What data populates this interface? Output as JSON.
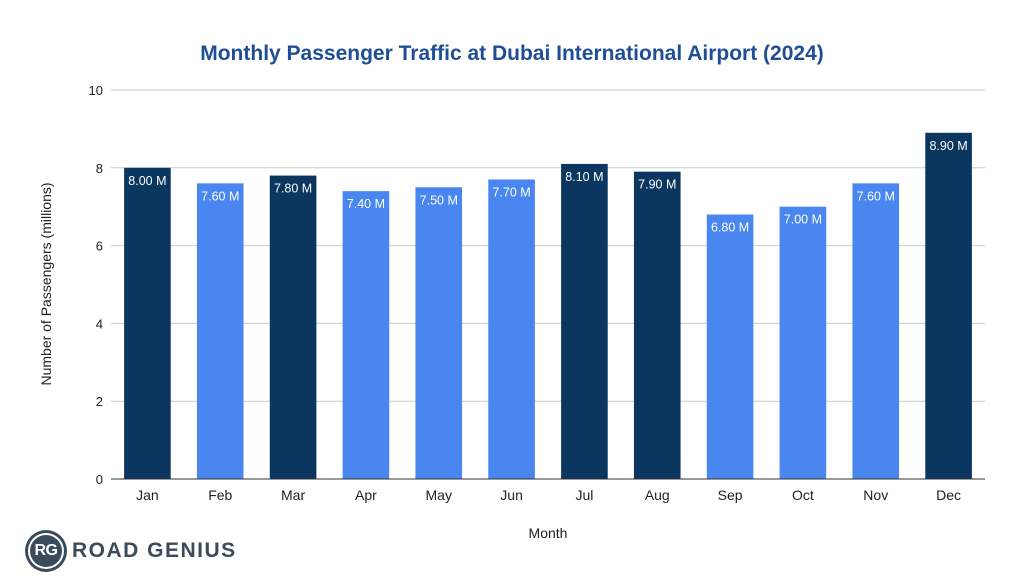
{
  "chart_data": {
    "type": "bar",
    "title": "Monthly Passenger Traffic at Dubai International Airport (2024)",
    "xlabel": "Month",
    "ylabel": "Number of Passengers (millions)",
    "ylim": [
      0,
      10
    ],
    "yticks": [
      0,
      2,
      4,
      6,
      8,
      10
    ],
    "grid": true,
    "categories": [
      "Jan",
      "Feb",
      "Mar",
      "Apr",
      "May",
      "Jun",
      "Jul",
      "Aug",
      "Sep",
      "Oct",
      "Nov",
      "Dec"
    ],
    "values": [
      8.0,
      7.6,
      7.8,
      7.4,
      7.5,
      7.7,
      8.1,
      7.9,
      6.8,
      7.0,
      7.6,
      8.9
    ],
    "labels": [
      "8.00 M",
      "7.60 M",
      "7.80 M",
      "7.40 M",
      "7.50 M",
      "7.70 M",
      "8.10 M",
      "7.90 M",
      "6.80 M",
      "7.00 M",
      "7.60 M",
      "8.90 M"
    ],
    "highlighted": [
      true,
      false,
      true,
      false,
      false,
      false,
      true,
      true,
      false,
      false,
      false,
      true
    ],
    "colors": {
      "highlight": "#0b3660",
      "normal": "#4a86f0",
      "title": "#1f4e96",
      "grid": "#cccccc",
      "axis": "#333333"
    }
  },
  "branding": {
    "logo_initials": "RG",
    "logo_name": "ROAD GENIUS"
  }
}
